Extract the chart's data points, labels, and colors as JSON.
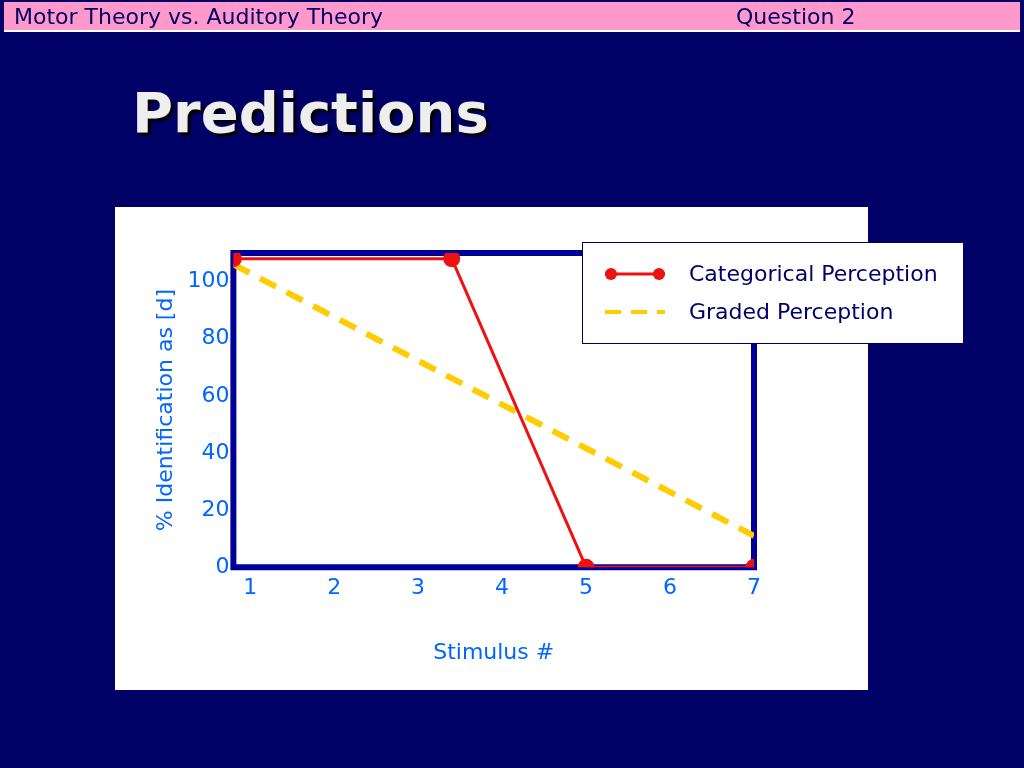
{
  "chart_data": {
    "type": "line",
    "title": "Predictions",
    "subtitle": "Motor Theory vs. Auditory Theory",
    "annotations": [
      "Question 2"
    ],
    "xlabel": "Stimulus #",
    "ylabel": "% Identification as [d]",
    "xlim": [
      0.8,
      7
    ],
    "xticks": [
      1,
      2,
      3,
      4,
      5,
      6,
      7
    ],
    "ylim": [
      0,
      110
    ],
    "yticks": [
      0,
      20,
      40,
      60,
      80,
      100
    ],
    "grid": false,
    "legend": "top right",
    "series": [
      {
        "name": "Categorical Perception",
        "color": "#ee1111",
        "marker": "circle",
        "line_style": "solid",
        "x": [
          0.8,
          3.4,
          5,
          7
        ],
        "values": [
          108,
          108,
          0,
          0
        ]
      },
      {
        "name": "Graded Perception",
        "color": "#ffcc00",
        "marker": "none",
        "line_style": "dashed",
        "x": [
          0.8,
          7
        ],
        "values": [
          106,
          11
        ]
      }
    ]
  }
}
